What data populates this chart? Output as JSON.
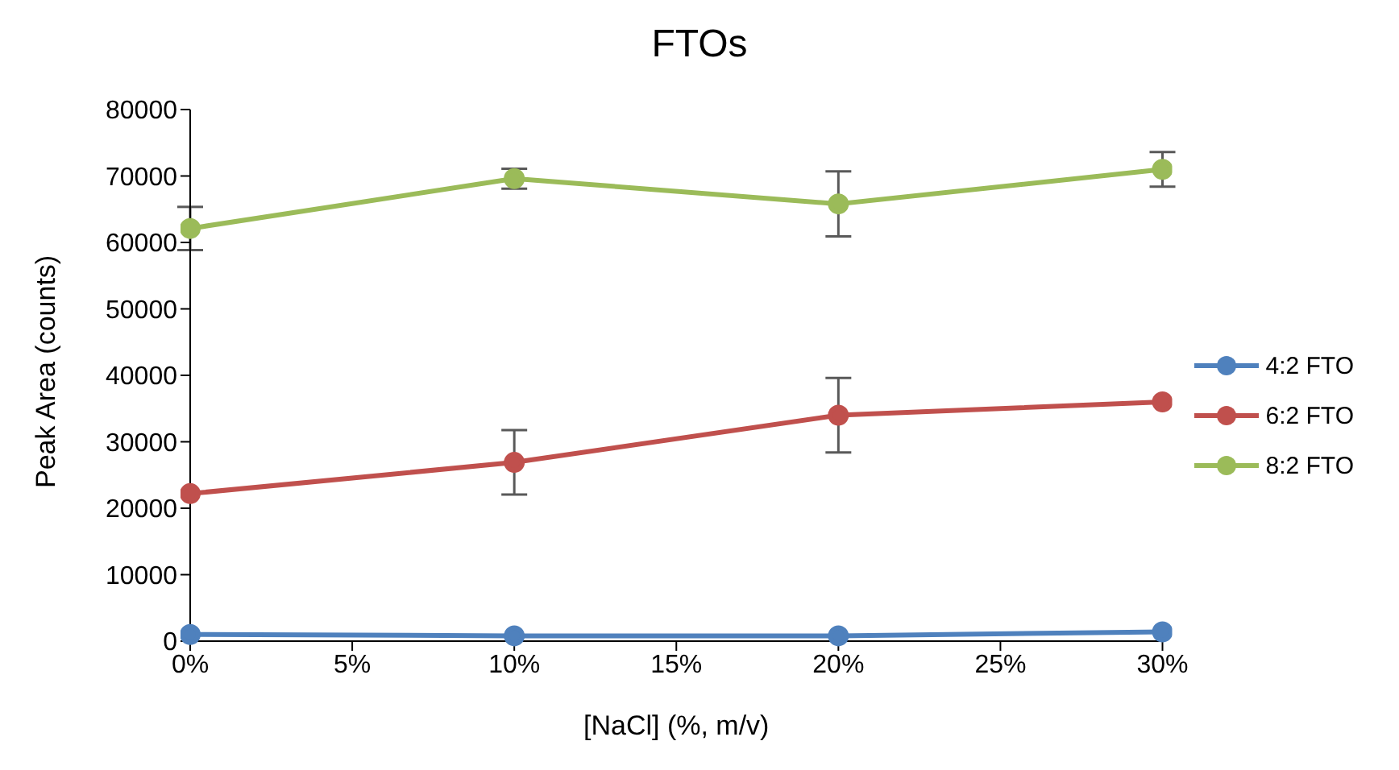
{
  "chart_data": {
    "type": "line",
    "title": "FTOs",
    "xlabel": "[NaCl] (%, m/v)",
    "ylabel": "Peak Area (counts)",
    "x": [
      0,
      10,
      20,
      30
    ],
    "series": [
      {
        "name": "4:2 FTO",
        "color": "#4f81bd",
        "values": [
          1000,
          800,
          800,
          1400
        ]
      },
      {
        "name": "6:2 FTO",
        "color": "#c0504d",
        "values": [
          22200,
          26900,
          34000,
          36000
        ],
        "errors": [
          null,
          4850,
          5600,
          null
        ]
      },
      {
        "name": "8:2 FTO",
        "color": "#9bbb59",
        "values": [
          62100,
          69600,
          65800,
          71000
        ],
        "errors": [
          3250,
          1500,
          4900,
          2600
        ]
      }
    ],
    "xlim": [
      0,
      30
    ],
    "xticks": [
      {
        "value": 0,
        "label": "0%"
      },
      {
        "value": 5,
        "label": "5%"
      },
      {
        "value": 10,
        "label": "10%"
      },
      {
        "value": 15,
        "label": "15%"
      },
      {
        "value": 20,
        "label": "20%"
      },
      {
        "value": 25,
        "label": "25%"
      },
      {
        "value": 30,
        "label": "30%"
      }
    ],
    "ylim": [
      0,
      80000
    ],
    "yticks": [
      0,
      10000,
      20000,
      30000,
      40000,
      50000,
      60000,
      70000,
      80000
    ],
    "grid": false,
    "legend": "right",
    "marker": "circle",
    "line_style": "solid"
  }
}
